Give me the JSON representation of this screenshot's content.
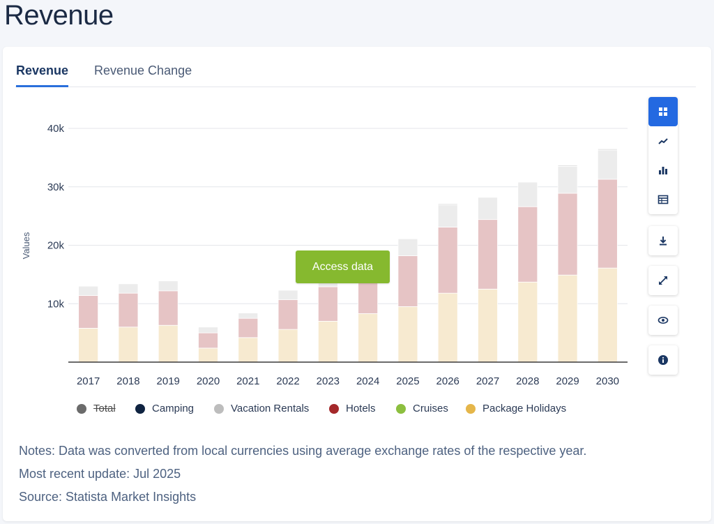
{
  "page": {
    "title": "Revenue"
  },
  "tabs": [
    {
      "label": "Revenue",
      "active": true
    },
    {
      "label": "Revenue Change",
      "active": false
    }
  ],
  "access_button": {
    "label": "Access data"
  },
  "toolbar": {
    "icons": [
      "grid-icon",
      "line-chart-icon",
      "bar-chart-icon",
      "table-icon",
      "download-icon",
      "expand-icon",
      "eye-icon",
      "info-icon"
    ],
    "accent": "#2369e1"
  },
  "legend": [
    {
      "label": "Total",
      "color": "#6b6b6b",
      "disabled": true
    },
    {
      "label": "Camping",
      "color": "#0f2341",
      "disabled": false
    },
    {
      "label": "Vacation Rentals",
      "color": "#bdbdbd",
      "disabled": false
    },
    {
      "label": "Hotels",
      "color": "#a4282a",
      "disabled": false
    },
    {
      "label": "Cruises",
      "color": "#8cbf3f",
      "disabled": false
    },
    {
      "label": "Package Holidays",
      "color": "#e5b64a",
      "disabled": false
    }
  ],
  "notes": {
    "line1": "Notes: Data was converted from local currencies using average exchange rates of the respective year.",
    "line2": "Most recent update: Jul 2025",
    "line3": "Source: Statista Market Insights"
  },
  "chart_data": {
    "type": "bar",
    "stacked": true,
    "ylabel": "Values",
    "ylim": [
      0,
      40000
    ],
    "yticks": [
      10000,
      20000,
      30000,
      40000
    ],
    "ytick_labels": [
      "10k",
      "20k",
      "30k",
      "40k"
    ],
    "grid": true,
    "categories": [
      "2017",
      "2018",
      "2019",
      "2020",
      "2021",
      "2022",
      "2023",
      "2024",
      "2025",
      "2026",
      "2027",
      "2028",
      "2029",
      "2030"
    ],
    "series": [
      {
        "name": "Package Holidays",
        "color": "#f7ead0",
        "values": [
          5800,
          6000,
          6300,
          2400,
          4200,
          5600,
          7000,
          8300,
          9500,
          11800,
          12500,
          13700,
          14900,
          16100
        ]
      },
      {
        "name": "Hotels",
        "color": "#e6c4c5",
        "values": [
          5600,
          5800,
          5900,
          2600,
          3300,
          5100,
          5900,
          6900,
          8700,
          11300,
          11900,
          12900,
          14000,
          15200
        ]
      },
      {
        "name": "Vacation Rentals",
        "color": "#ececec",
        "values": [
          1600,
          1600,
          1700,
          1000,
          900,
          1600,
          1800,
          2300,
          2900,
          3800,
          3800,
          4200,
          4600,
          5000
        ]
      },
      {
        "name": "Camping",
        "color": "#dddddd",
        "values": [
          0,
          0,
          0,
          0,
          0,
          0,
          0,
          0,
          0,
          200,
          0,
          0,
          200,
          200
        ]
      }
    ]
  }
}
